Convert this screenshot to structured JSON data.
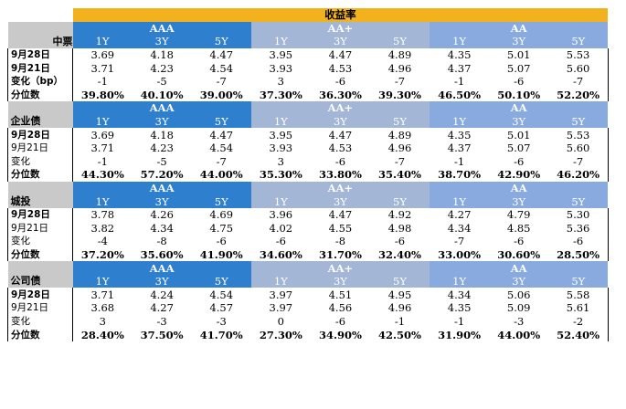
{
  "title": "收益率",
  "grades": [
    "AAA",
    "AA+",
    "AA"
  ],
  "tenors": [
    "1Y",
    "3Y",
    "5Y"
  ],
  "sections": [
    {
      "name": "中票",
      "rows": [
        {
          "label": "9月28日",
          "values": [
            "3.69",
            "4.18",
            "4.47",
            "3.95",
            "4.47",
            "4.89",
            "4.35",
            "5.01",
            "5.53"
          ]
        },
        {
          "label": "9月21日",
          "values": [
            "3.71",
            "4.23",
            "4.54",
            "3.93",
            "4.53",
            "4.96",
            "4.37",
            "5.07",
            "5.60"
          ]
        },
        {
          "label": "变化（bp）",
          "values": [
            "-1",
            "-5",
            "-7",
            "3",
            "-6",
            "-7",
            "-1",
            "-6",
            "-7"
          ]
        },
        {
          "label": "分位数",
          "values": [
            "39.80%",
            "40.10%",
            "39.00%",
            "37.30%",
            "36.30%",
            "39.30%",
            "46.50%",
            "50.10%",
            "52.20%"
          ]
        }
      ]
    },
    {
      "name": "企业债",
      "rows": [
        {
          "label": "9月28日",
          "values": [
            "3.69",
            "4.18",
            "4.47",
            "3.95",
            "4.47",
            "4.89",
            "4.35",
            "5.01",
            "5.53"
          ]
        },
        {
          "label": "9月21日",
          "values": [
            "3.71",
            "4.23",
            "4.54",
            "3.93",
            "4.53",
            "4.96",
            "4.37",
            "5.07",
            "5.60"
          ]
        },
        {
          "label": "变化",
          "values": [
            "-1",
            "-5",
            "-7",
            "3",
            "-6",
            "-7",
            "-1",
            "-6",
            "-7"
          ]
        },
        {
          "label": "分位数",
          "values": [
            "44.30%",
            "57.20%",
            "44.00%",
            "35.30%",
            "33.80%",
            "35.40%",
            "38.70%",
            "42.90%",
            "46.20%"
          ]
        }
      ]
    },
    {
      "name": "城投",
      "rows": [
        {
          "label": "9月28日",
          "values": [
            "3.78",
            "4.26",
            "4.69",
            "3.96",
            "4.47",
            "4.92",
            "4.27",
            "4.79",
            "5.30"
          ]
        },
        {
          "label": "9月21日",
          "values": [
            "3.82",
            "4.34",
            "4.75",
            "4.02",
            "4.55",
            "4.98",
            "4.34",
            "4.85",
            "5.36"
          ]
        },
        {
          "label": "变化",
          "values": [
            "-4",
            "-8",
            "-6",
            "-6",
            "-8",
            "-6",
            "-7",
            "-6",
            "-6"
          ]
        },
        {
          "label": "分位数",
          "values": [
            "37.20%",
            "35.60%",
            "41.90%",
            "34.60%",
            "31.70%",
            "32.40%",
            "33.00%",
            "30.60%",
            "28.50%"
          ]
        }
      ]
    },
    {
      "name": "公司债",
      "rows": [
        {
          "label": "9月28日",
          "values": [
            "3.71",
            "4.24",
            "4.54",
            "3.97",
            "4.51",
            "4.95",
            "4.34",
            "5.06",
            "5.58"
          ]
        },
        {
          "label": "9月21日",
          "values": [
            "3.68",
            "4.27",
            "4.57",
            "3.97",
            "4.56",
            "4.96",
            "4.35",
            "5.09",
            "5.61"
          ]
        },
        {
          "label": "变化",
          "values": [
            "3",
            "-3",
            "-3",
            "0",
            "-6",
            "-1",
            "-1",
            "-3",
            "-2"
          ]
        },
        {
          "label": "分位数",
          "values": [
            "28.40%",
            "37.50%",
            "41.70%",
            "27.30%",
            "34.90%",
            "42.50%",
            "31.90%",
            "44.00%",
            "52.40%"
          ]
        }
      ]
    }
  ]
}
